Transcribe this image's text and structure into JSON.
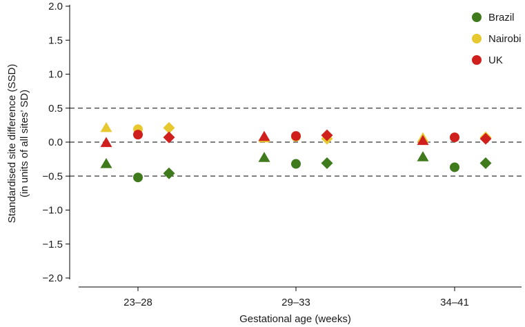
{
  "chart_data": {
    "type": "scatter",
    "xlabel": "Gestational age (weeks)",
    "ylabel_line1": "Standardised site difference (SSD)",
    "ylabel_line2": "(in units of all sites’ SD)",
    "categories": [
      "23–28",
      "29–33",
      "34–41"
    ],
    "ylim": [
      -2.0,
      2.0
    ],
    "yticks": [
      2.0,
      1.5,
      1.0,
      0.5,
      0.0,
      -0.5,
      -1.0,
      -1.5,
      -2.0
    ],
    "ytick_labels": [
      "2.0",
      "1.5",
      "1.0",
      "0.5",
      "0.0",
      "−0.5",
      "−1.0",
      "−1.5",
      "−2.0"
    ],
    "reference_lines": [
      0.5,
      0.0,
      -0.5
    ],
    "marker_shapes": [
      "triangle",
      "circle",
      "diamond"
    ],
    "series": [
      {
        "name": "Brazil",
        "color": "#3f7a1c",
        "values": [
          [
            -0.32,
            -0.52,
            -0.46
          ],
          [
            -0.23,
            -0.32,
            -0.31
          ],
          [
            -0.22,
            -0.37,
            -0.31
          ]
        ]
      },
      {
        "name": "Nairobi",
        "color": "#e7c831",
        "values": [
          [
            0.21,
            0.19,
            0.21
          ],
          [
            0.06,
            0.08,
            0.05
          ],
          [
            0.06,
            0.07,
            0.07
          ]
        ]
      },
      {
        "name": "UK",
        "color": "#d0201e",
        "values": [
          [
            -0.01,
            0.11,
            0.07
          ],
          [
            0.08,
            0.09,
            0.1
          ],
          [
            0.02,
            0.07,
            0.05
          ]
        ]
      }
    ],
    "legend_position": "top-right"
  }
}
